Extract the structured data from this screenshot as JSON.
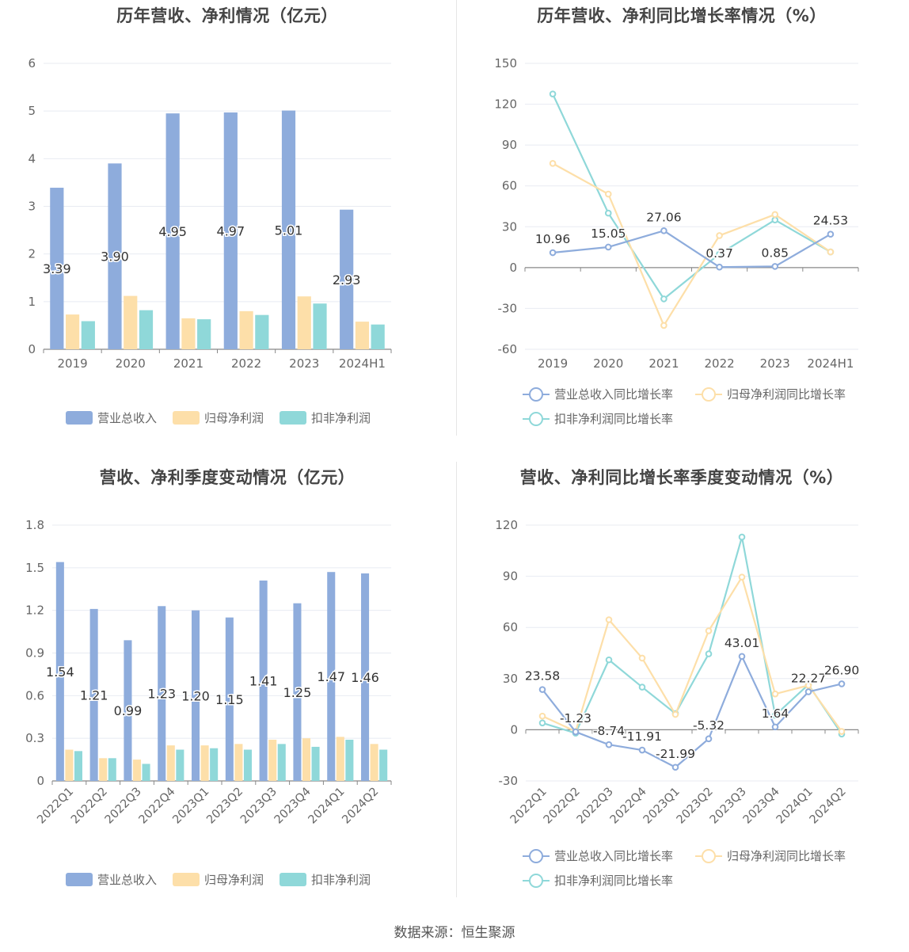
{
  "colors": {
    "revenue": "#8eacdc",
    "net_profit": "#fddfa9",
    "deducted_profit": "#8fd8d9",
    "grid": "#e8ebf2",
    "axis": "#888888",
    "label": "#333333"
  },
  "source_text": "数据来源：恒生聚源",
  "legends": {
    "bars": [
      "营业总收入",
      "归母净利润",
      "扣非净利润"
    ],
    "lines": [
      "营业总收入同比增长率",
      "归母净利润同比增长率",
      "扣非净利润同比增长率"
    ]
  },
  "chart_data": [
    {
      "type": "bar",
      "title": "历年营收、净利情况（亿元）",
      "categories": [
        "2019",
        "2020",
        "2021",
        "2022",
        "2023",
        "2024H1"
      ],
      "series": [
        {
          "name": "营业总收入",
          "values": [
            3.39,
            3.9,
            4.95,
            4.97,
            5.01,
            2.93
          ],
          "labels": [
            "3.39",
            "3.90",
            "4.95",
            "4.97",
            "5.01",
            "2.93"
          ]
        },
        {
          "name": "归母净利润",
          "values": [
            0.73,
            1.12,
            0.65,
            0.8,
            1.11,
            0.58
          ]
        },
        {
          "name": "扣非净利润",
          "values": [
            0.59,
            0.82,
            0.63,
            0.72,
            0.96,
            0.52
          ]
        }
      ],
      "yticks": [
        "0",
        "1",
        "2",
        "3",
        "4",
        "5",
        "6"
      ],
      "ylim": [
        0,
        6
      ]
    },
    {
      "type": "line",
      "title": "历年营收、净利同比增长率情况（%）",
      "categories": [
        "2019",
        "2020",
        "2021",
        "2022",
        "2023",
        "2024H1"
      ],
      "series": [
        {
          "name": "营业总收入同比增长率",
          "values": [
            10.96,
            15.05,
            27.06,
            0.37,
            0.85,
            24.53
          ],
          "labels": [
            "10.96",
            "15.05",
            "27.06",
            "0.37",
            "0.85",
            "24.53"
          ]
        },
        {
          "name": "归母净利润同比增长率",
          "values": [
            76.5,
            54.0,
            -42.5,
            23.5,
            39.0,
            11.5
          ]
        },
        {
          "name": "扣非净利润同比增长率",
          "values": [
            127.5,
            40.0,
            -23.0,
            10.0,
            35.0,
            11.5
          ]
        }
      ],
      "yticks": [
        "-60",
        "-30",
        "0",
        "30",
        "60",
        "90",
        "120",
        "150"
      ],
      "ylim": [
        -60,
        150
      ]
    },
    {
      "type": "bar",
      "title": "营收、净利季度变动情况（亿元）",
      "categories": [
        "2022Q1",
        "2022Q2",
        "2022Q3",
        "2022Q4",
        "2023Q1",
        "2023Q2",
        "2023Q3",
        "2023Q4",
        "2024Q1",
        "2024Q2"
      ],
      "series": [
        {
          "name": "营业总收入",
          "values": [
            1.54,
            1.21,
            0.99,
            1.23,
            1.2,
            1.15,
            1.41,
            1.25,
            1.47,
            1.46
          ],
          "labels": [
            "1.54",
            "1.21",
            "0.99",
            "1.23",
            "1.20",
            "1.15",
            "1.41",
            "1.25",
            "1.47",
            "1.46"
          ]
        },
        {
          "name": "归母净利润",
          "values": [
            0.22,
            0.16,
            0.15,
            0.25,
            0.25,
            0.26,
            0.29,
            0.3,
            0.31,
            0.26
          ]
        },
        {
          "name": "扣非净利润",
          "values": [
            0.21,
            0.16,
            0.12,
            0.22,
            0.23,
            0.22,
            0.26,
            0.24,
            0.29,
            0.22
          ]
        }
      ],
      "yticks": [
        "0",
        "0.3",
        "0.6",
        "0.9",
        "1.2",
        "1.5",
        "1.8"
      ],
      "ylim": [
        0,
        1.8
      ]
    },
    {
      "type": "line",
      "title": "营收、净利同比增长率季度变动情况（%）",
      "categories": [
        "2022Q1",
        "2022Q2",
        "2022Q3",
        "2022Q4",
        "2023Q1",
        "2023Q2",
        "2023Q3",
        "2023Q4",
        "2024Q1",
        "2024Q2"
      ],
      "series": [
        {
          "name": "营业总收入同比增长率",
          "values": [
            23.58,
            -1.23,
            -8.74,
            -11.91,
            -21.99,
            -5.32,
            43.01,
            1.64,
            22.27,
            26.9
          ],
          "labels": [
            "23.58",
            "-1.23",
            "-8.74",
            "-11.91",
            "-21.99",
            "-5.32",
            "43.01",
            "1.64",
            "22.27",
            "26.90"
          ]
        },
        {
          "name": "归母净利润同比增长率",
          "values": [
            8.0,
            -1.0,
            64.5,
            42.0,
            9.0,
            58.0,
            89.5,
            21.0,
            26.0,
            -1.0
          ]
        },
        {
          "name": "扣非净利润同比增长率",
          "values": [
            4.0,
            -2.0,
            41.0,
            25.0,
            9.5,
            44.5,
            113.0,
            8.5,
            26.5,
            -2.5
          ]
        }
      ],
      "yticks": [
        "-30",
        "0",
        "30",
        "60",
        "90",
        "120"
      ],
      "ylim": [
        -30,
        120
      ]
    }
  ]
}
